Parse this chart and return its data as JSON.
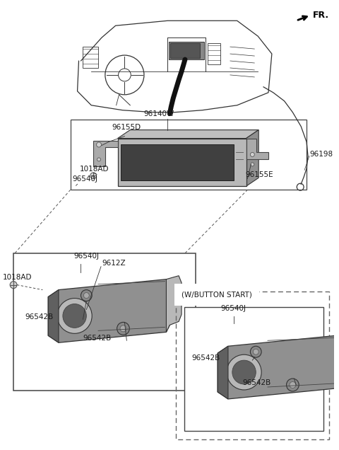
{
  "bg_color": "#ffffff",
  "fig_width": 4.8,
  "fig_height": 6.36,
  "text_color": "#1a1a1a",
  "line_color": "#333333",
  "gray_fill": "#b0b0b0",
  "dark_gray": "#707070",
  "light_gray": "#d8d8d8",
  "labels": {
    "FR": "FR.",
    "96140W": "96140W",
    "96155D": "96155D",
    "1018AD_top": "1018AD",
    "96540J_top": "96540J",
    "1018AD_left": "1018AD",
    "9612Z": "9612Z",
    "96542B_1": "96542B",
    "96542B_2": "96542B",
    "96155E": "96155E",
    "96198": "96198",
    "w_button": "(W/BUTTON START)",
    "96540J_bottom": "96540J",
    "96542B_3": "96542B",
    "96542B_4": "96542B"
  }
}
